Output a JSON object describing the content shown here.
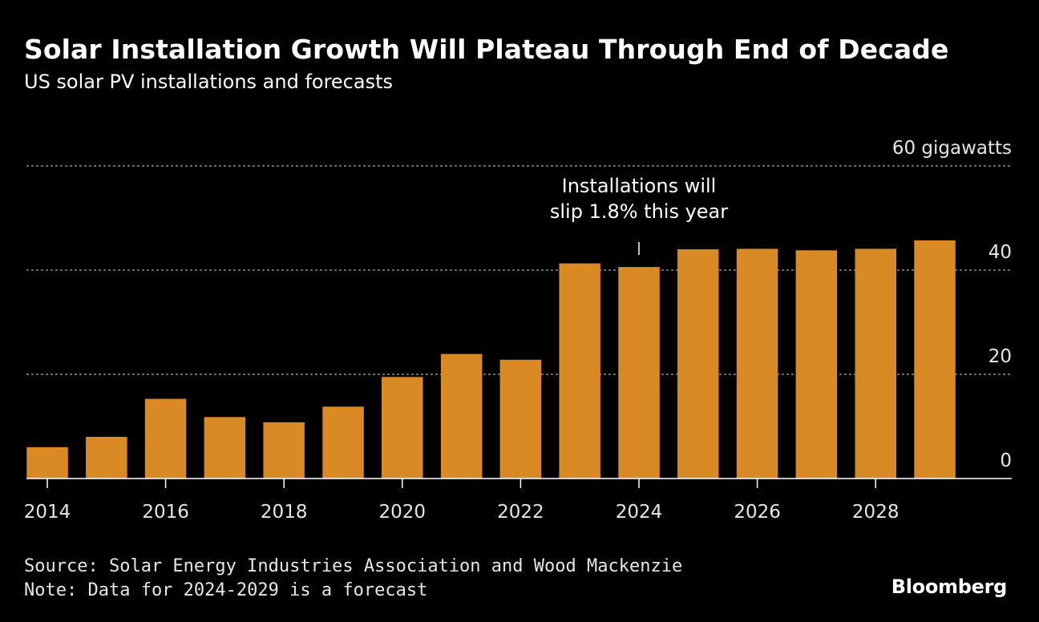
{
  "title": "Solar Installation Growth Will Plateau Through End of Decade",
  "subtitle": "US solar PV installations and forecasts",
  "source": "Source: Solar Energy Industries Association and Wood Mackenzie",
  "note": "Note: Data for 2024-2029 is a forecast",
  "brand": "Bloomberg",
  "colors": {
    "background": "#000000",
    "bar": "#D98A24",
    "gridline": "#8c8c8c",
    "axis": "#ffffff",
    "text": "#ffffff"
  },
  "chart_data": {
    "type": "bar",
    "title": "Solar Installation Growth Will Plateau Through End of Decade",
    "subtitle": "US solar PV installations and forecasts",
    "xlabel": "",
    "ylabel": "gigawatts",
    "unit_label": "60 gigawatts",
    "ylim": [
      0,
      60
    ],
    "yticks": [
      0,
      20,
      40
    ],
    "grid": true,
    "categories": [
      "2014",
      "2015",
      "2016",
      "2017",
      "2018",
      "2019",
      "2020",
      "2021",
      "2022",
      "2023",
      "2024",
      "2025",
      "2026",
      "2027",
      "2028",
      "2029"
    ],
    "x_tick_labels": [
      "2014",
      "2016",
      "2018",
      "2020",
      "2022",
      "2024",
      "2026",
      "2028"
    ],
    "values": [
      6.0,
      8.0,
      15.3,
      11.8,
      10.8,
      13.8,
      19.5,
      23.9,
      22.8,
      41.3,
      40.6,
      44.0,
      44.1,
      43.8,
      44.1,
      45.7
    ],
    "annotation": {
      "category": "2024",
      "lines": [
        "Installations will",
        "slip 1.8% this year"
      ]
    }
  }
}
